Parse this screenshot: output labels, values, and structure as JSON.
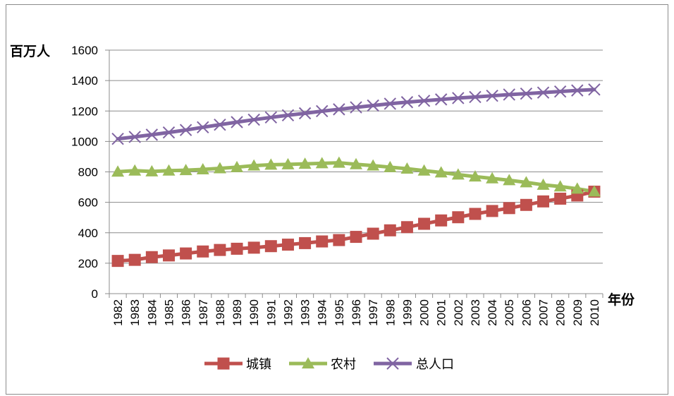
{
  "chart_data": {
    "type": "line",
    "title": "",
    "ylabel": "百万人",
    "xlabel": "年份",
    "ylim": [
      0,
      1600
    ],
    "yticks": [
      0,
      200,
      400,
      600,
      800,
      1000,
      1200,
      1400,
      1600
    ],
    "grid": "horizontal",
    "legend": "bottom",
    "x": [
      "1982",
      "1983",
      "1984",
      "1985",
      "1986",
      "1987",
      "1988",
      "1989",
      "1990",
      "1991",
      "1992",
      "1993",
      "1994",
      "1995",
      "1996",
      "1997",
      "1998",
      "1999",
      "2000",
      "2001",
      "2002",
      "2003",
      "2004",
      "2005",
      "2006",
      "2007",
      "2008",
      "2009",
      "2010"
    ],
    "series": [
      {
        "name": "城镇",
        "color": "#c0504d",
        "marker": "square",
        "values": [
          215,
          222,
          240,
          251,
          264,
          277,
          287,
          295,
          302,
          312,
          322,
          332,
          343,
          352,
          373,
          394,
          416,
          437,
          459,
          481,
          502,
          524,
          543,
          562,
          583,
          606,
          624,
          645,
          670
        ]
      },
      {
        "name": "农村",
        "color": "#9bbb59",
        "marker": "triangle",
        "values": [
          801,
          808,
          803,
          808,
          811,
          816,
          823,
          831,
          841,
          847,
          849,
          853,
          856,
          860,
          850,
          841,
          831,
          821,
          808,
          796,
          782,
          769,
          757,
          745,
          731,
          715,
          704,
          689,
          671
        ]
      },
      {
        "name": "总人口",
        "color": "#8064a2",
        "marker": "x",
        "values": [
          1017,
          1030,
          1044,
          1059,
          1075,
          1093,
          1110,
          1127,
          1143,
          1158,
          1172,
          1185,
          1199,
          1211,
          1224,
          1236,
          1248,
          1258,
          1267,
          1276,
          1285,
          1292,
          1300,
          1308,
          1314,
          1321,
          1328,
          1335,
          1341
        ]
      }
    ]
  }
}
